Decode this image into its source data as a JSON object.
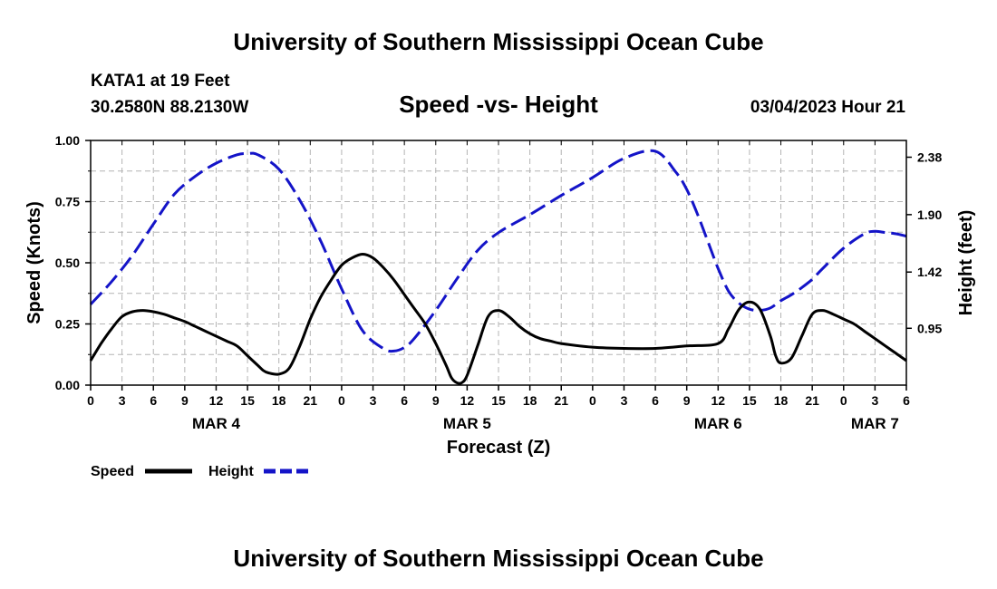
{
  "header": {
    "title": "University of Southern Mississippi Ocean Cube",
    "station": "KATA1 at 19 Feet",
    "coords": "30.2580N  88.2130W",
    "chart_title": "Speed -vs- Height",
    "datetime": "03/04/2023 Hour 21"
  },
  "footer": {
    "title": "University of Southern Mississippi Ocean Cube"
  },
  "colors": {
    "speed": "#000000",
    "height": "#1414c8",
    "grid": "#b4b4b4"
  },
  "chart_data": {
    "type": "line",
    "title": "Speed -vs- Height",
    "xlabel": "Forecast (Z)",
    "x_unit": "hours from Mar 4 00Z",
    "xlim": [
      0,
      78
    ],
    "x_tick_step": 3,
    "x_tick_labels": [
      "0",
      "3",
      "6",
      "9",
      "12",
      "15",
      "18",
      "21",
      "0",
      "3",
      "6",
      "9",
      "12",
      "15",
      "18",
      "21",
      "0",
      "3",
      "6",
      "9",
      "12",
      "15",
      "18",
      "21",
      "0",
      "3",
      "6"
    ],
    "date_labels": [
      {
        "label": "MAR 4",
        "x": 12
      },
      {
        "label": "MAR 5",
        "x": 36
      },
      {
        "label": "MAR 6",
        "x": 60
      },
      {
        "label": "MAR 7",
        "x": 75
      }
    ],
    "y_left": {
      "label": "Speed (Knots)",
      "range": [
        0,
        1
      ],
      "ticks": [
        0,
        0.25,
        0.5,
        0.75,
        1.0
      ],
      "tick_labels": [
        "0.00",
        "0.25",
        "0.50",
        "0.75",
        "1.00"
      ]
    },
    "y_right": {
      "label": "Height (feet)",
      "range": [
        0.475,
        2.52
      ],
      "ticks": [
        0.95,
        1.42,
        1.9,
        2.38
      ],
      "tick_labels": [
        "0.95",
        "1.42",
        "1.90",
        "2.38"
      ]
    },
    "series": [
      {
        "name": "Speed",
        "axis": "left",
        "style": "solid",
        "x": [
          0,
          1,
          2,
          3,
          4,
          5,
          6,
          7,
          8,
          9,
          10,
          11,
          12,
          13,
          14,
          15,
          16,
          16.5,
          17,
          18,
          19,
          20,
          21,
          22,
          23,
          24,
          25,
          26,
          27,
          28,
          29,
          30,
          31,
          32,
          33,
          34,
          34.5,
          35,
          35.5,
          36,
          37,
          38,
          39,
          40,
          41,
          42,
          43,
          44,
          45,
          48,
          51,
          54,
          57,
          60,
          61,
          62,
          63,
          64,
          65,
          65.5,
          66,
          67,
          68,
          69,
          70,
          71,
          72,
          73,
          74,
          75,
          76,
          77,
          78
        ],
        "values": [
          0.1,
          0.17,
          0.23,
          0.28,
          0.3,
          0.305,
          0.3,
          0.29,
          0.275,
          0.26,
          0.24,
          0.22,
          0.2,
          0.18,
          0.16,
          0.12,
          0.08,
          0.06,
          0.05,
          0.045,
          0.07,
          0.16,
          0.27,
          0.36,
          0.43,
          0.49,
          0.52,
          0.535,
          0.52,
          0.48,
          0.43,
          0.37,
          0.31,
          0.25,
          0.17,
          0.08,
          0.03,
          0.01,
          0.01,
          0.04,
          0.16,
          0.28,
          0.305,
          0.28,
          0.24,
          0.21,
          0.19,
          0.18,
          0.17,
          0.155,
          0.15,
          0.15,
          0.16,
          0.17,
          0.23,
          0.31,
          0.34,
          0.31,
          0.2,
          0.12,
          0.09,
          0.11,
          0.2,
          0.29,
          0.305,
          0.29,
          0.27,
          0.25,
          0.22,
          0.19,
          0.16,
          0.13,
          0.1
        ]
      },
      {
        "name": "Height",
        "axis": "right",
        "style": "dashed",
        "x": [
          0,
          2,
          4,
          6,
          8,
          10,
          12,
          14,
          15,
          16,
          18,
          20,
          22,
          24,
          26,
          28,
          29,
          30,
          31,
          33,
          35,
          37,
          39,
          42,
          45,
          48,
          51,
          54,
          56,
          57,
          58,
          59,
          60,
          61,
          62,
          63,
          64,
          65,
          66,
          67,
          68,
          69,
          70,
          72,
          74,
          75,
          76,
          77,
          78
        ],
        "values": [
          1.15,
          1.34,
          1.56,
          1.82,
          2.07,
          2.22,
          2.33,
          2.4,
          2.41,
          2.4,
          2.28,
          2.02,
          1.68,
          1.28,
          0.93,
          0.78,
          0.76,
          0.79,
          0.87,
          1.1,
          1.36,
          1.6,
          1.75,
          1.9,
          2.06,
          2.21,
          2.37,
          2.43,
          2.25,
          2.11,
          1.91,
          1.68,
          1.45,
          1.26,
          1.16,
          1.11,
          1.1,
          1.12,
          1.18,
          1.23,
          1.29,
          1.36,
          1.45,
          1.62,
          1.74,
          1.76,
          1.75,
          1.74,
          1.72
        ]
      }
    ],
    "legend": [
      {
        "label": "Speed",
        "style": "solid"
      },
      {
        "label": "Height",
        "style": "dashed"
      }
    ],
    "legend_position": "bottom-left",
    "grid": true
  }
}
